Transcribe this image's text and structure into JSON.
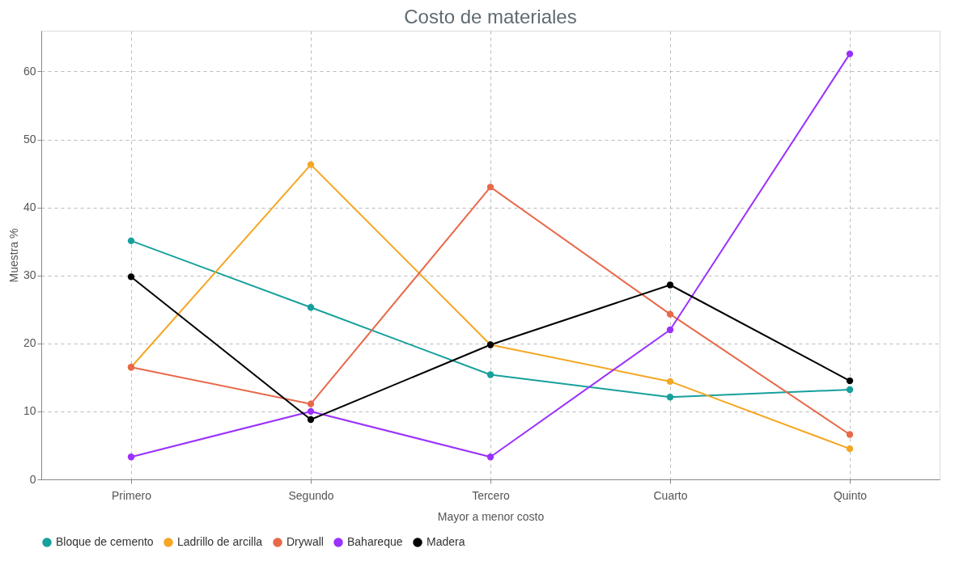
{
  "chart_data": {
    "type": "line",
    "title": "Costo de materiales",
    "xlabel": "Mayor a menor costo",
    "ylabel": "Muestra %",
    "categories": [
      "Primero",
      "Segundo",
      "Tercero",
      "Cuarto",
      "Quinto"
    ],
    "series": [
      {
        "name": "Bloque de cemento",
        "color": "#17a09c",
        "values": [
          35.1,
          25.3,
          15.4,
          12.1,
          13.2
        ]
      },
      {
        "name": "Ladrillo de arcilla",
        "color": "#f5a623",
        "values": [
          16.5,
          46.3,
          19.8,
          14.4,
          4.5
        ]
      },
      {
        "name": "Drywall",
        "color": "#e8694a",
        "values": [
          16.5,
          11.1,
          43.0,
          24.3,
          6.6
        ]
      },
      {
        "name": "Bahareque",
        "color": "#9b30ff",
        "values": [
          3.3,
          10.0,
          3.3,
          22.0,
          62.6
        ]
      },
      {
        "name": "Madera",
        "color": "#000000",
        "values": [
          29.8,
          8.8,
          19.8,
          28.6,
          14.5
        ]
      }
    ],
    "ylim": [
      0,
      66
    ],
    "yticks": [
      0,
      10,
      20,
      30,
      40,
      50,
      60
    ],
    "grid": true,
    "legend": "bottom",
    "marker": "circle",
    "line_style": "solid"
  }
}
